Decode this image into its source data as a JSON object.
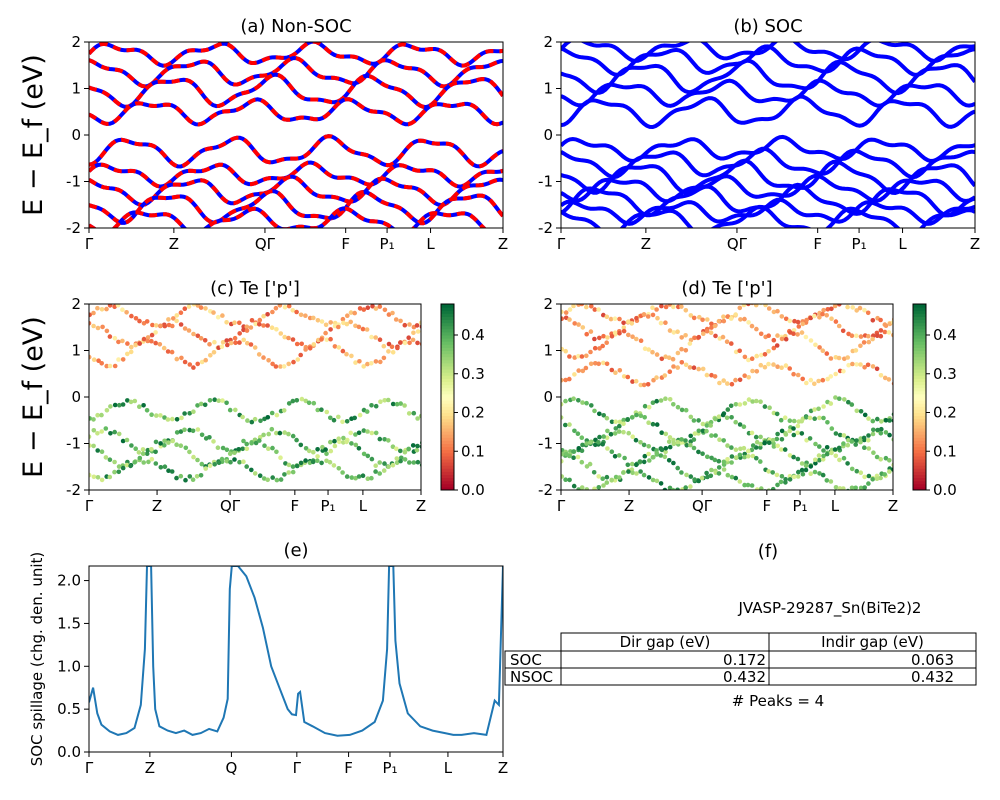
{
  "material": "JVASP-29287_Sn(BiTe2)2",
  "ylabel": "E − E_f (eV)",
  "kpath": [
    "Γ",
    "Z",
    "QΓ",
    "F",
    "P₁",
    "L",
    "Z"
  ],
  "colors": {
    "red": "#ff0000",
    "blue": "#0000ff",
    "spill": "#1f77b4"
  },
  "chart_data": [
    {
      "id": "a",
      "type": "line",
      "title": "(a) Non-SOC",
      "ylim": [
        -2,
        2
      ],
      "yticks": [
        -2,
        -1,
        0,
        1,
        2
      ],
      "xticks": [
        "Γ",
        "Z",
        "QΓ",
        "F",
        "P₁",
        "L",
        "Z"
      ],
      "xtick_pos": [
        0,
        0.205,
        0.425,
        0.62,
        0.72,
        0.825,
        1
      ],
      "series": [
        {
          "style": "red-dashed-over-blue",
          "band_centers": [
            1.75,
            1.35,
            0.95,
            0.5,
            -0.35,
            -0.85,
            -1.2,
            -1.55,
            -1.85
          ]
        }
      ]
    },
    {
      "id": "b",
      "type": "line",
      "title": "(b) SOC",
      "ylim": [
        -2,
        2
      ],
      "yticks": [
        -2,
        -1,
        0,
        1,
        2
      ],
      "xticks": [
        "Γ",
        "Z",
        "QΓ",
        "F",
        "P₁",
        "L",
        "Z"
      ],
      "xtick_pos": [
        0,
        0.205,
        0.425,
        0.62,
        0.72,
        0.825,
        1
      ],
      "series": [
        {
          "style": "blue",
          "band_centers": [
            1.85,
            1.6,
            1.25,
            0.9,
            0.5,
            -0.3,
            -0.6,
            -0.9,
            -1.15,
            -1.4,
            -1.65,
            -1.85
          ]
        }
      ]
    },
    {
      "id": "c",
      "type": "scatter",
      "title": "(c)  Te ['p']",
      "ylim": [
        -2,
        2
      ],
      "yticks": [
        -2,
        -1,
        0,
        1,
        2
      ],
      "xticks": [
        "Γ",
        "Z",
        "QΓ",
        "F",
        "P₁",
        "L",
        "Z"
      ],
      "xtick_pos": [
        0,
        0.205,
        0.425,
        0.62,
        0.72,
        0.825,
        1
      ],
      "colorbar": {
        "range": [
          0.0,
          0.48
        ],
        "ticks": [
          "0.0",
          "0.1",
          "0.2",
          "0.3",
          "0.4"
        ],
        "cmap": "RdYlGn"
      },
      "band_centers": [
        1.75,
        1.35,
        0.95,
        -0.3,
        -0.95,
        -1.2,
        -1.55
      ]
    },
    {
      "id": "d",
      "type": "scatter",
      "title": "(d) Te ['p']",
      "ylim": [
        -2,
        2
      ],
      "yticks": [
        -2,
        -1,
        0,
        1,
        2
      ],
      "xticks": [
        "Γ",
        "Z",
        "QΓ",
        "F",
        "P₁",
        "L",
        "Z"
      ],
      "xtick_pos": [
        0,
        0.205,
        0.425,
        0.62,
        0.72,
        0.825,
        1
      ],
      "colorbar": {
        "range": [
          0.0,
          0.48
        ],
        "ticks": [
          "0.0",
          "0.1",
          "0.2",
          "0.3",
          "0.4"
        ],
        "cmap": "RdYlGn"
      },
      "band_centers": [
        1.8,
        1.5,
        1.1,
        0.5,
        -0.3,
        -0.7,
        -0.95,
        -1.2,
        -1.5,
        -1.8
      ]
    },
    {
      "id": "e",
      "type": "line",
      "title": "(e)",
      "ylabel": "SOC spillage (chg. den. unit)",
      "ylim": [
        0,
        2.17
      ],
      "yticks": [
        "0.0",
        "0.5",
        "1.0",
        "1.5",
        "2.0"
      ],
      "xticks": [
        "Γ",
        "Z",
        "Q",
        "Γ",
        "F",
        "P₁",
        "L",
        "Z"
      ],
      "xtick_pos": [
        0,
        0.147,
        0.344,
        0.502,
        0.627,
        0.727,
        0.867,
        1
      ],
      "x": [
        0,
        0.01,
        0.02,
        0.03,
        0.05,
        0.07,
        0.09,
        0.11,
        0.125,
        0.135,
        0.14,
        0.145,
        0.15,
        0.155,
        0.16,
        0.17,
        0.19,
        0.21,
        0.23,
        0.25,
        0.27,
        0.29,
        0.31,
        0.325,
        0.335,
        0.34,
        0.345,
        0.36,
        0.38,
        0.4,
        0.42,
        0.44,
        0.46,
        0.48,
        0.49,
        0.5,
        0.505,
        0.51,
        0.52,
        0.54,
        0.57,
        0.6,
        0.63,
        0.66,
        0.69,
        0.71,
        0.72,
        0.725,
        0.73,
        0.735,
        0.74,
        0.75,
        0.77,
        0.8,
        0.83,
        0.86,
        0.88,
        0.9,
        0.93,
        0.96,
        0.98,
        0.99,
        1.0
      ],
      "y": [
        0.58,
        0.75,
        0.45,
        0.32,
        0.24,
        0.2,
        0.22,
        0.28,
        0.55,
        1.2,
        2.17,
        2.17,
        2.17,
        1.0,
        0.5,
        0.3,
        0.25,
        0.22,
        0.25,
        0.2,
        0.22,
        0.27,
        0.24,
        0.4,
        0.62,
        1.9,
        2.17,
        2.17,
        2.05,
        1.8,
        1.45,
        1.0,
        0.75,
        0.5,
        0.44,
        0.43,
        0.68,
        0.7,
        0.35,
        0.3,
        0.22,
        0.19,
        0.2,
        0.25,
        0.35,
        0.6,
        1.2,
        2.17,
        2.17,
        2.17,
        1.3,
        0.8,
        0.45,
        0.3,
        0.25,
        0.22,
        0.2,
        0.2,
        0.22,
        0.2,
        0.6,
        0.55,
        2.17
      ]
    },
    {
      "id": "f",
      "type": "table",
      "title": "(f)",
      "caption": "JVASP-29287_Sn(BiTe2)2",
      "columns": [
        "",
        "Dir gap (eV)",
        "Indir gap (eV)"
      ],
      "rows": [
        [
          "SOC",
          "0.172",
          "0.063"
        ],
        [
          "NSOC",
          "0.432",
          "0.432"
        ]
      ],
      "footer": "# Peaks = 4"
    }
  ]
}
